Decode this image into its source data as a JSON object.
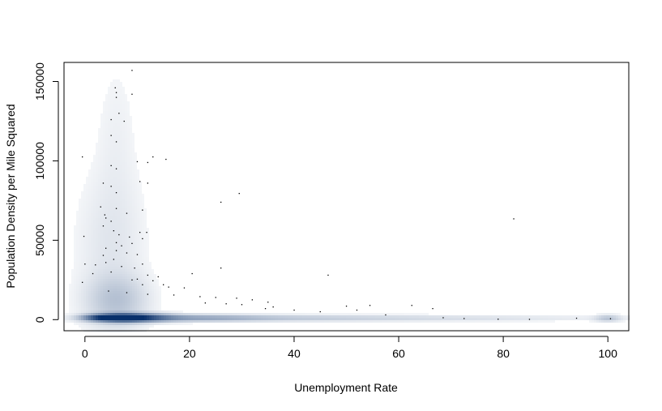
{
  "chart_data": {
    "type": "heatmap",
    "subtype": "smoothScatter",
    "title": "",
    "xlabel": "Unemployment Rate",
    "ylabel": "Population Density per Mile Squared",
    "xlim": [
      -4,
      104
    ],
    "ylim": [
      -7000,
      162000
    ],
    "x_ticks": [
      0,
      20,
      40,
      60,
      80,
      100
    ],
    "y_ticks": [
      0,
      50000,
      100000,
      150000
    ],
    "x_tick_labels": [
      "0",
      "20",
      "40",
      "60",
      "80",
      "100"
    ],
    "y_tick_labels": [
      "0",
      "50000",
      "100000",
      "150000"
    ],
    "grid": false,
    "legend": "none",
    "colors": {
      "low": "#ffffff",
      "high": "#08306b",
      "points": "#000000",
      "frame": "#000000"
    },
    "density_blobs": [
      {
        "x": 7,
        "y": 1200,
        "sx": 3.2,
        "sy": 1600,
        "w": 1.0
      },
      {
        "x": 3,
        "y": 1200,
        "sx": 2.2,
        "sy": 1200,
        "w": 0.55
      },
      {
        "x": 11,
        "y": 1200,
        "sx": 4.0,
        "sy": 1500,
        "w": 0.55
      },
      {
        "x": 20,
        "y": 1000,
        "sx": 9.0,
        "sy": 1300,
        "w": 0.22
      },
      {
        "x": 38,
        "y": 900,
        "sx": 16.0,
        "sy": 1200,
        "w": 0.09
      },
      {
        "x": 70,
        "y": 900,
        "sx": 20.0,
        "sy": 1200,
        "w": 0.04
      },
      {
        "x": 100,
        "y": 800,
        "sx": 1.5,
        "sy": 1300,
        "w": 0.12
      },
      {
        "x": 6,
        "y": 12000,
        "sx": 3.5,
        "sy": 10000,
        "w": 0.12
      },
      {
        "x": 5,
        "y": 45000,
        "sx": 4.0,
        "sy": 30000,
        "w": 0.03
      },
      {
        "x": 6,
        "y": 110000,
        "sx": 2.5,
        "sy": 35000,
        "w": 0.012
      }
    ],
    "points": [
      [
        9,
        157000
      ],
      [
        5.8,
        146000
      ],
      [
        6,
        143000
      ],
      [
        9,
        142000
      ],
      [
        6,
        140000
      ],
      [
        6.5,
        130000
      ],
      [
        5,
        126000
      ],
      [
        7.5,
        125000
      ],
      [
        5,
        116000
      ],
      [
        6,
        112000
      ],
      [
        -0.5,
        102500
      ],
      [
        13,
        102500
      ],
      [
        15.5,
        101000
      ],
      [
        10,
        99500
      ],
      [
        12,
        99000
      ],
      [
        5,
        97000
      ],
      [
        6,
        95000
      ],
      [
        10.5,
        87000
      ],
      [
        3.5,
        86000
      ],
      [
        5,
        84000
      ],
      [
        12,
        86000
      ],
      [
        6,
        80000
      ],
      [
        29.5,
        79500
      ],
      [
        26,
        74000
      ],
      [
        3,
        71000
      ],
      [
        6,
        70000
      ],
      [
        11,
        69000
      ],
      [
        3.8,
        66000
      ],
      [
        8,
        67000
      ],
      [
        4,
        64000
      ],
      [
        5,
        62000
      ],
      [
        82,
        63500
      ],
      [
        3.5,
        59000
      ],
      [
        5.5,
        56000
      ],
      [
        10.5,
        55000
      ],
      [
        11.8,
        55000
      ],
      [
        6.5,
        53500
      ],
      [
        -0.2,
        52500
      ],
      [
        8.5,
        52000
      ],
      [
        11,
        51000
      ],
      [
        6,
        48500
      ],
      [
        9,
        48000
      ],
      [
        7,
        46500
      ],
      [
        4,
        45000
      ],
      [
        6,
        43500
      ],
      [
        8,
        42000
      ],
      [
        10,
        41000
      ],
      [
        3.5,
        40500
      ],
      [
        5.5,
        38000
      ],
      [
        4,
        36000
      ],
      [
        0,
        35000
      ],
      [
        2,
        34500
      ],
      [
        11,
        35000
      ],
      [
        7,
        33500
      ],
      [
        9.5,
        32500
      ],
      [
        26,
        32500
      ],
      [
        1.5,
        29000
      ],
      [
        5,
        30000
      ],
      [
        12,
        28000
      ],
      [
        20.5,
        29000
      ],
      [
        46.5,
        28000
      ],
      [
        14,
        27000
      ],
      [
        9,
        25000
      ],
      [
        10,
        25500
      ],
      [
        13,
        24500
      ],
      [
        -0.5,
        23500
      ],
      [
        15,
        22000
      ],
      [
        16,
        20500
      ],
      [
        19,
        20000
      ],
      [
        11,
        22000
      ],
      [
        4.5,
        18000
      ],
      [
        8,
        17000
      ],
      [
        12,
        16000
      ],
      [
        17,
        15500
      ],
      [
        22,
        14500
      ],
      [
        25,
        14000
      ],
      [
        29,
        13500
      ],
      [
        32,
        12500
      ],
      [
        35,
        11000
      ],
      [
        23,
        10500
      ],
      [
        27,
        10000
      ],
      [
        30,
        9500
      ],
      [
        54.5,
        9000
      ],
      [
        62.5,
        9000
      ],
      [
        50,
        8500
      ],
      [
        36,
        8000
      ],
      [
        66.5,
        7000
      ],
      [
        34.5,
        7000
      ],
      [
        40,
        6000
      ],
      [
        52,
        6000
      ],
      [
        45,
        5000
      ],
      [
        57.5,
        3000
      ],
      [
        68.5,
        1200
      ],
      [
        72.5,
        700
      ],
      [
        79,
        300
      ],
      [
        85,
        200
      ],
      [
        94,
        900
      ],
      [
        100.5,
        600
      ]
    ]
  }
}
